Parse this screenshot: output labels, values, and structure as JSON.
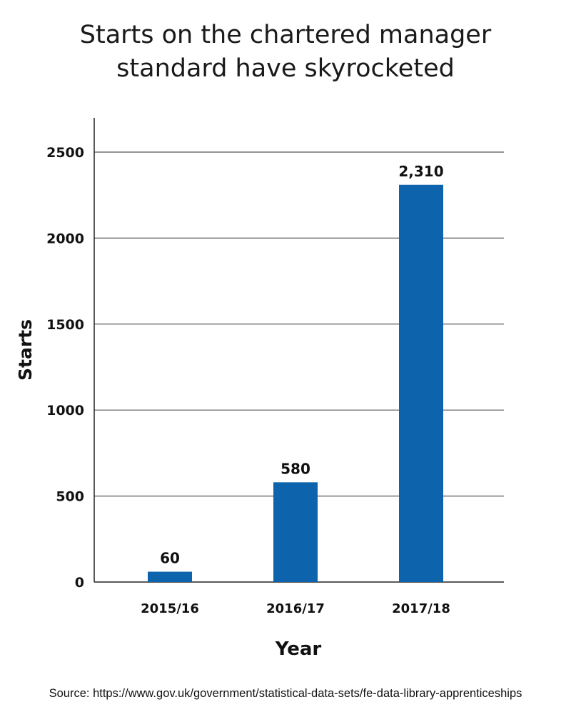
{
  "chart_data": {
    "type": "bar",
    "title_lines": [
      "Starts on the chartered manager",
      "standard have skyrocketed"
    ],
    "xlabel": "Year",
    "ylabel": "Starts",
    "categories": [
      "2015/16",
      "2016/17",
      "2017/18"
    ],
    "values": [
      60,
      580,
      2310
    ],
    "data_labels": [
      "60",
      "580",
      "2,310"
    ],
    "y_ticks": [
      0,
      500,
      1000,
      1500,
      2000,
      2500
    ],
    "y_tick_labels": [
      "0",
      "500",
      "1000",
      "1500",
      "2000",
      "2500"
    ],
    "ylim": [
      0,
      2700
    ],
    "grid": true,
    "legend": "none",
    "bar_color": "#0e63ad",
    "grid_color": "#555555"
  },
  "source_text": "Source: https://www.gov.uk/government/statistical-data-sets/fe-data-library-apprenticeships"
}
